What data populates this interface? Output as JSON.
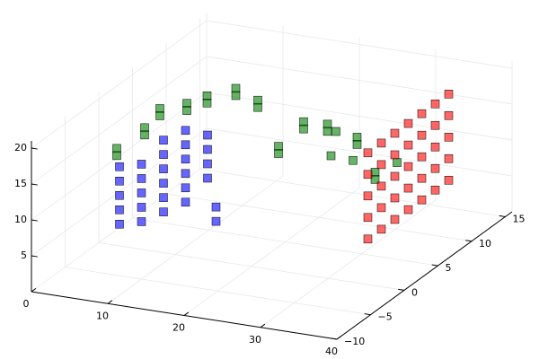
{
  "chart_data": {
    "type": "scatter3d",
    "xlim": [
      0,
      40
    ],
    "ylim": [
      -10,
      16
    ],
    "zlim": [
      0,
      21
    ],
    "xticks": [
      0,
      10,
      20,
      30,
      40
    ],
    "yticks": [
      {
        "value": -10,
        "label": "−10"
      },
      {
        "value": -5,
        "label": "−5"
      },
      0,
      5,
      10,
      15
    ],
    "zticks": [
      5,
      10,
      15,
      20
    ],
    "grid": true,
    "series": [
      {
        "color": "#008000",
        "x": [
          5,
          5,
          6,
          6,
          8,
          8,
          8,
          8,
          8,
          8,
          10,
          10,
          12,
          12,
          18,
          18,
          22,
          22,
          25,
          25,
          20,
          20,
          30,
          30,
          28,
          26,
          32,
          24
        ],
        "y": [
          -3,
          -3,
          0,
          0,
          0,
          0,
          4,
          4,
          7,
          7,
          9,
          9,
          10,
          10,
          10,
          10,
          9,
          9,
          10,
          10,
          4,
          4,
          7,
          7,
          6,
          5,
          8,
          8
        ],
        "z": [
          16,
          15,
          17,
          16,
          20,
          19,
          18,
          17,
          17,
          16,
          17,
          16,
          15,
          14,
          13,
          12,
          14,
          13,
          12,
          11,
          14,
          13,
          10,
          9,
          12,
          13,
          11,
          14
        ]
      },
      {
        "color": "#0000ff",
        "x": [
          8,
          8,
          8,
          8,
          8,
          10,
          10,
          10,
          10,
          10,
          12,
          12,
          12,
          12,
          12,
          12,
          14,
          14,
          14,
          14,
          14,
          14,
          16,
          16,
          16,
          16,
          18,
          18
        ],
        "y": [
          -6,
          -6,
          -6,
          -6,
          -6,
          -5,
          -5,
          -5,
          -5,
          -5,
          -4,
          -4,
          -4,
          -4,
          -4,
          -4,
          -3,
          -3,
          -3,
          -3,
          -3,
          -3,
          -2,
          -2,
          -2,
          -2,
          -3,
          -3
        ],
        "z": [
          8,
          10,
          12,
          14,
          16,
          8,
          10,
          12,
          14,
          16,
          9,
          11,
          13,
          15,
          17,
          19,
          10,
          12,
          14,
          16,
          18,
          20,
          13,
          15,
          17,
          19,
          8,
          10
        ]
      },
      {
        "color": "#ff0000",
        "x": [
          37,
          37,
          37,
          37,
          37,
          37,
          37,
          37,
          37,
          37,
          37,
          37,
          37,
          37,
          37,
          37,
          37,
          37,
          37,
          37,
          37,
          37,
          37,
          37,
          37,
          37,
          37,
          37,
          37,
          37,
          37,
          37,
          37,
          37,
          37
        ],
        "y": [
          -2,
          -2,
          -2,
          -2,
          -2,
          0,
          0,
          0,
          0,
          0,
          2,
          2,
          2,
          2,
          2,
          4,
          4,
          4,
          4,
          4,
          6,
          6,
          6,
          6,
          6,
          8,
          8,
          8,
          8,
          8,
          10,
          10,
          10,
          10,
          10
        ],
        "z": [
          8,
          11,
          14,
          17,
          20,
          8,
          11,
          14,
          17,
          20,
          8,
          11,
          14,
          17,
          20,
          8,
          11,
          14,
          17,
          20,
          8,
          11,
          14,
          17,
          20,
          8,
          11,
          14,
          17,
          20,
          8,
          11,
          14,
          17,
          20
        ]
      }
    ]
  }
}
